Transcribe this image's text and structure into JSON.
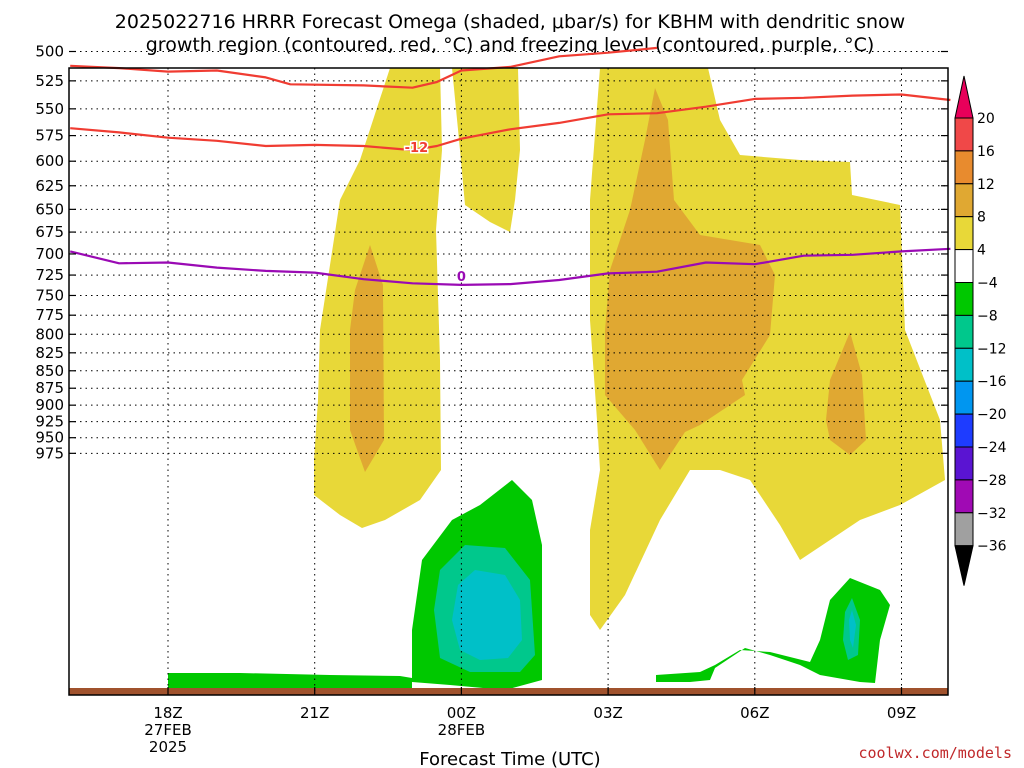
{
  "header": {
    "title_line1": "2025022716 HRRR Forecast Omega (shaded, μbar/s) for KBHM with dendritic snow",
    "title_line2": "growth region (contoured, red, °C) and freezing level (contoured, purple, °C)"
  },
  "footer": {
    "xlabel": "Forecast Time (UTC)",
    "credit": "coolwx.com/models"
  },
  "chart_data": {
    "type": "heatmap",
    "title": "2025022716 HRRR Forecast Omega (shaded, μbar/s) for KBHM with dendritic snow growth region (contoured, red, °C) and freezing level (contoured, purple, °C)",
    "xlabel": "Forecast Time (UTC)",
    "ylabel": "",
    "x_range_hours_from_1800Z_27FEB": [
      -2,
      16
    ],
    "y_axis": "pressure (mb), inverted, roughly logarithmic",
    "y_ticks": [
      "500",
      "525",
      "550",
      "575",
      "600",
      "625",
      "650",
      "675",
      "700",
      "725",
      "750",
      "775",
      "800",
      "825",
      "850",
      "875",
      "900",
      "925",
      "950",
      "975"
    ],
    "x_ticks": [
      {
        "hour": 0,
        "lines": [
          "18Z",
          "27FEB",
          "2025"
        ]
      },
      {
        "hour": 3,
        "lines": [
          "21Z"
        ]
      },
      {
        "hour": 6,
        "lines": [
          "00Z",
          "28FEB"
        ]
      },
      {
        "hour": 9,
        "lines": [
          "03Z"
        ]
      },
      {
        "hour": 12,
        "lines": [
          "06Z"
        ]
      },
      {
        "hour": 15,
        "lines": [
          "09Z"
        ]
      }
    ],
    "grid": true,
    "colorbar": {
      "labels": [
        "20",
        "16",
        "12",
        "8",
        "4",
        "−4",
        "−8",
        "−12",
        "−16",
        "−20",
        "−24",
        "−28",
        "−32",
        "−36"
      ],
      "colors": [
        "#e8005a",
        "#f04848",
        "#e88b2e",
        "#e0a832",
        "#e8d838",
        "#ffffff",
        "#00c800",
        "#00c88c",
        "#00c0c8",
        "#0096f0",
        "#1e3cff",
        "#5a14d2",
        "#a00ab4",
        "#a0a0a0"
      ]
    },
    "series": [
      {
        "name": "-12",
        "color": "#f03c32",
        "points": [
          [
            -2,
            568
          ],
          [
            -1,
            572
          ],
          [
            0,
            577
          ],
          [
            1,
            580
          ],
          [
            2,
            585
          ],
          [
            3,
            584
          ],
          [
            4,
            585
          ],
          [
            5,
            589
          ],
          [
            5.5,
            585
          ],
          [
            6,
            578
          ],
          [
            7,
            569
          ],
          [
            8,
            563
          ],
          [
            9,
            555
          ],
          [
            10,
            554
          ],
          [
            11,
            548
          ],
          [
            12,
            541
          ],
          [
            13,
            540
          ],
          [
            14,
            538
          ],
          [
            15,
            537
          ],
          [
            16,
            542
          ]
        ]
      },
      {
        "name": "",
        "color": "#f03c32",
        "points": [
          [
            -2,
            512
          ],
          [
            -1,
            514
          ],
          [
            0,
            517
          ],
          [
            1,
            516
          ],
          [
            2,
            522
          ],
          [
            2.5,
            528
          ],
          [
            4,
            529
          ],
          [
            5,
            531
          ],
          [
            5.5,
            526
          ],
          [
            6,
            516
          ],
          [
            7,
            513
          ],
          [
            8,
            504
          ],
          [
            9,
            501
          ],
          [
            10,
            497
          ]
        ]
      },
      {
        "name": "0",
        "color": "#9a0ab4",
        "points": [
          [
            -2,
            697
          ],
          [
            -1,
            711
          ],
          [
            0,
            710
          ],
          [
            1,
            716
          ],
          [
            2,
            720
          ],
          [
            3,
            722
          ],
          [
            4,
            730
          ],
          [
            5,
            735
          ],
          [
            6,
            737
          ],
          [
            7,
            736
          ],
          [
            8,
            731
          ],
          [
            9,
            723
          ],
          [
            10,
            721
          ],
          [
            11,
            710
          ],
          [
            12,
            712
          ],
          [
            13,
            702
          ],
          [
            14,
            701
          ],
          [
            15,
            697
          ],
          [
            16,
            694
          ]
        ]
      }
    ]
  }
}
